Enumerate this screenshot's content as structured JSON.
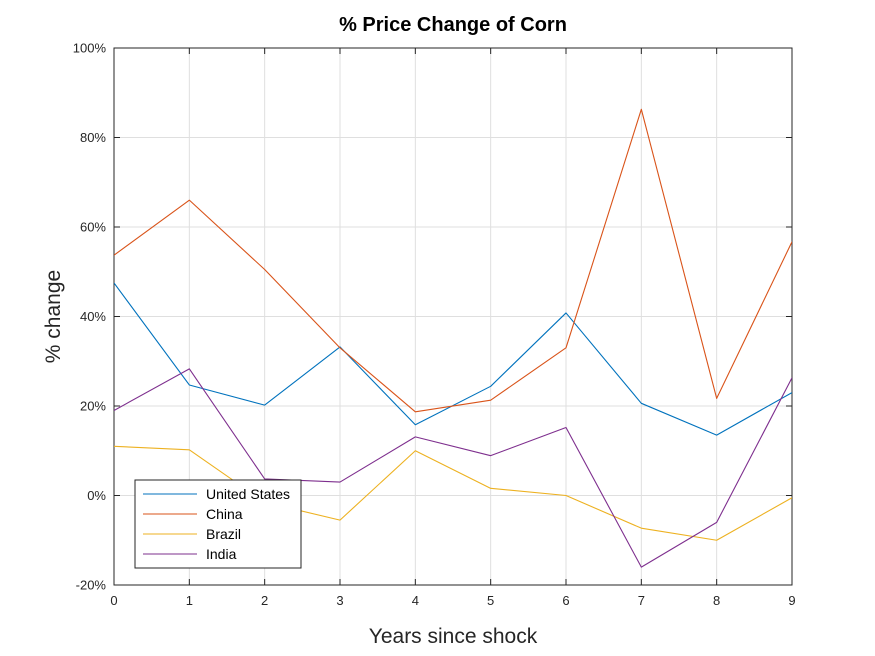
{
  "chart_data": {
    "type": "line",
    "title": "% Price Change of Corn",
    "xlabel": "Years since shock",
    "ylabel": "% change",
    "x": [
      0,
      1,
      2,
      3,
      4,
      5,
      6,
      7,
      8,
      9
    ],
    "xlim": [
      0,
      9
    ],
    "ylim": [
      -20,
      100
    ],
    "x_ticks": [
      "0",
      "1",
      "2",
      "3",
      "4",
      "5",
      "6",
      "7",
      "8",
      "9"
    ],
    "y_tick_values": [
      -20,
      0,
      20,
      40,
      60,
      80,
      100
    ],
    "y_ticks": [
      "-20%",
      "0%",
      "20%",
      "40%",
      "60%",
      "80%",
      "100%"
    ],
    "grid": true,
    "legend_position": "bottom-left",
    "series": [
      {
        "name": "United States",
        "color": "#0072BD",
        "values": [
          47.5,
          24.7,
          20.2,
          33.2,
          15.8,
          24.4,
          40.8,
          20.6,
          13.5,
          23.0
        ]
      },
      {
        "name": "China",
        "color": "#D95319",
        "values": [
          53.7,
          66.0,
          50.5,
          33.0,
          18.7,
          21.3,
          33.0,
          86.3,
          21.7,
          56.7
        ]
      },
      {
        "name": "Brazil",
        "color": "#EDB120",
        "values": [
          11.0,
          10.2,
          -1.5,
          -5.5,
          10.0,
          1.6,
          0.0,
          -7.3,
          -10.0,
          -0.5
        ]
      },
      {
        "name": "India",
        "color": "#7E2F8E",
        "values": [
          19.0,
          28.3,
          3.7,
          3.0,
          13.1,
          8.9,
          15.2,
          -16.0,
          -6.0,
          26.3
        ]
      }
    ]
  }
}
